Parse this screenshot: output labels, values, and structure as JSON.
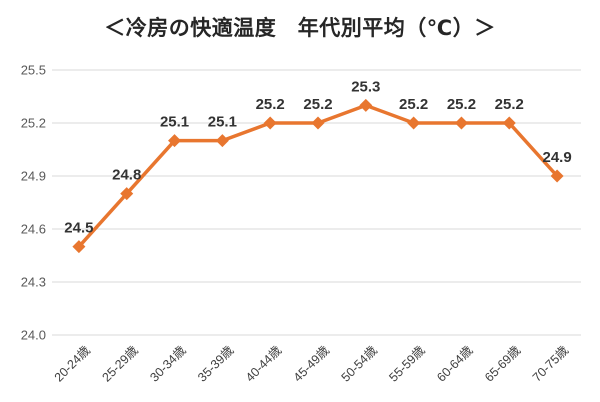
{
  "chart_data": {
    "type": "line",
    "title": "＜冷房の快適温度　年代別平均（℃）＞",
    "categories": [
      "20-24歳",
      "25-29歳",
      "30-34歳",
      "35-39歳",
      "40-44歳",
      "45-49歳",
      "50-54歳",
      "55-59歳",
      "60-64歳",
      "65-69歳",
      "70-75歳"
    ],
    "values": [
      24.5,
      24.8,
      25.1,
      25.1,
      25.2,
      25.2,
      25.3,
      25.2,
      25.2,
      25.2,
      24.9
    ],
    "point_labels": [
      "24.5",
      "24.8",
      "25.1",
      "25.1",
      "25.2",
      "25.2",
      "25.3",
      "25.2",
      "25.2",
      "25.2",
      "24.9"
    ],
    "xlabel": "",
    "ylabel": "",
    "ylim": [
      24.0,
      25.5
    ],
    "yticks": {
      "values": [
        25.5,
        25.2,
        24.9,
        24.6,
        24.3,
        24.0
      ],
      "labels": [
        "25.5",
        "25.2",
        "24.9",
        "24.6",
        "24.3",
        "24.0"
      ]
    },
    "grid": true,
    "legend": "none",
    "marker": "diamond",
    "colors": {
      "line": "#E8762F",
      "marker": "#E8762F",
      "gridline": "#D9D9D9",
      "y_tick_text": "#595959",
      "x_tick_text": "#404040",
      "data_label": "#333333",
      "title_text": "#262626",
      "background": "#FFFFFF"
    }
  }
}
